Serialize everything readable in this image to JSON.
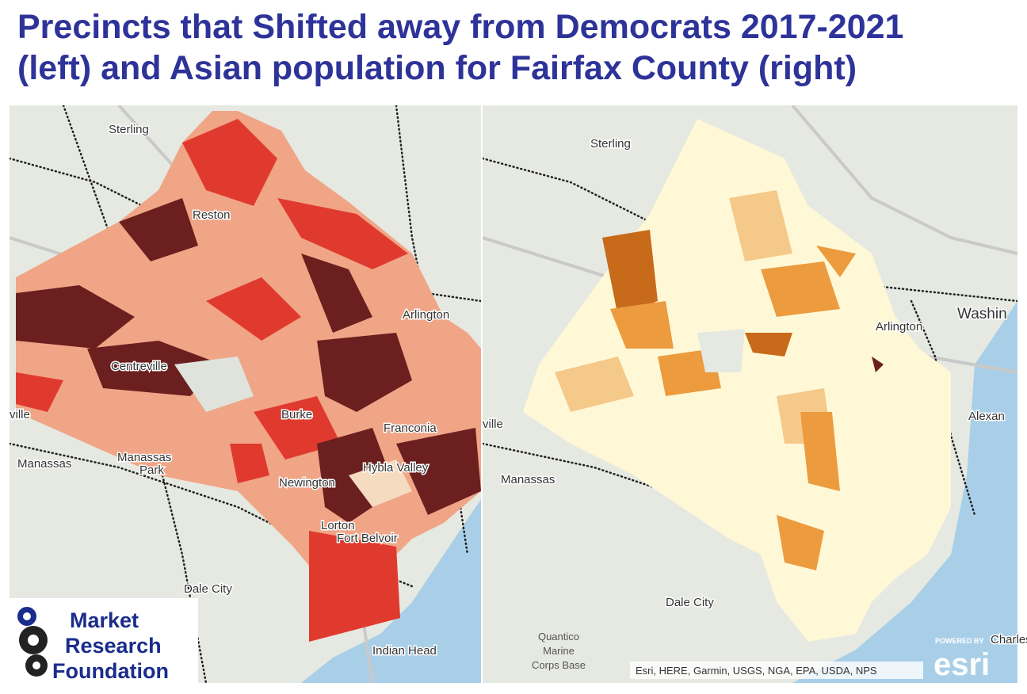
{
  "title": {
    "line1": "Precincts that Shifted away from Democrats 2017-2021",
    "line2": "(left) and Asian population for Fairfax County (right)"
  },
  "left_map": {
    "labels": [
      "Sterling",
      "Reston",
      "Arlington",
      "Centreville",
      "Burke",
      "Franconia",
      "Manassas",
      "Manassas",
      "Park",
      "Newington",
      "Hybla Valley",
      "Lorton",
      "Fort Belvoir",
      "Dale City",
      "Indian Head",
      "ville"
    ]
  },
  "right_map": {
    "labels": [
      "Sterling",
      "Arlington",
      "Washin",
      "Alexan",
      "Manassas",
      "Dale City",
      "Charles",
      "ville"
    ],
    "base": [
      "Quantico",
      "Marine",
      "Corps Base"
    ]
  },
  "attribution": "Esri, HERE, Garmin, USGS, NGA, EPA, USDA, NPS",
  "esri": {
    "powered_by": "POWERED BY",
    "brand": "esri"
  },
  "logo": {
    "lines": [
      "Market",
      "Research",
      "Foundation"
    ]
  }
}
